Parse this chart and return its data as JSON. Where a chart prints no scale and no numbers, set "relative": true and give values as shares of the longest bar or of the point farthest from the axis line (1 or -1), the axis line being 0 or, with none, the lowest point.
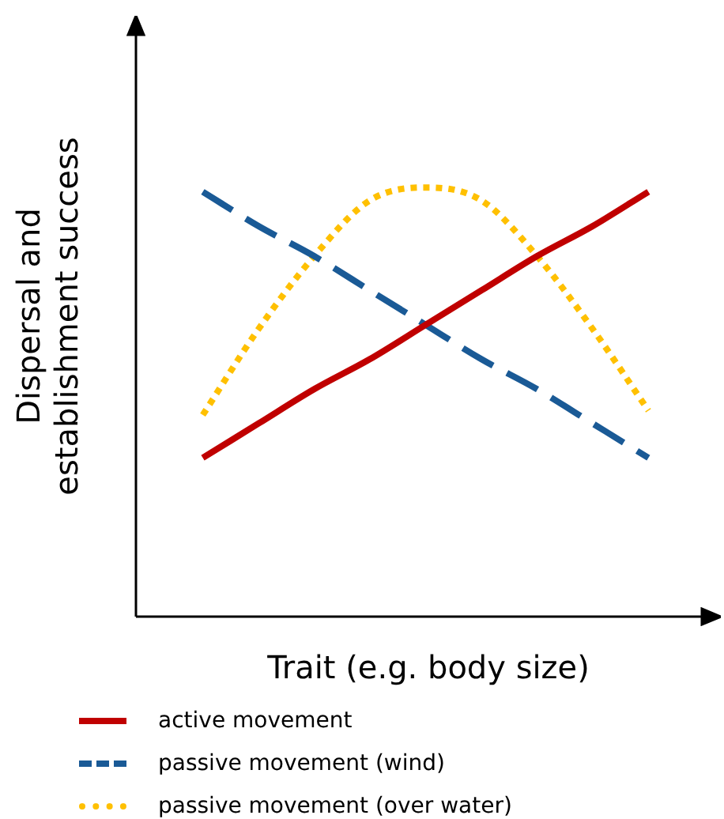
{
  "chart_data": {
    "type": "line",
    "relative": true,
    "xlabel": "Trait (e.g. body size)",
    "ylabel": "Dispersal and establishment success",
    "categories": [
      null,
      null,
      null,
      null,
      null,
      null,
      null,
      null,
      null
    ],
    "series": [
      {
        "name": "active movement",
        "color": "#c00000",
        "line_style": "solid",
        "values": [
          0.37,
          0.45,
          0.53,
          0.6,
          0.68,
          0.76,
          0.84,
          0.91,
          0.99
        ]
      },
      {
        "name": "passive movement (wind)",
        "color": "#1a5a96",
        "line_style": "dashed",
        "values": [
          0.99,
          0.91,
          0.84,
          0.76,
          0.68,
          0.6,
          0.53,
          0.45,
          0.37
        ]
      },
      {
        "name": "passive movement (over water)",
        "color": "#ffc000",
        "line_style": "dotted",
        "values": [
          0.47,
          0.67,
          0.84,
          0.97,
          1,
          0.97,
          0.84,
          0.67,
          0.48
        ]
      }
    ],
    "marker": "none",
    "grid": false,
    "legend": "bottom"
  }
}
